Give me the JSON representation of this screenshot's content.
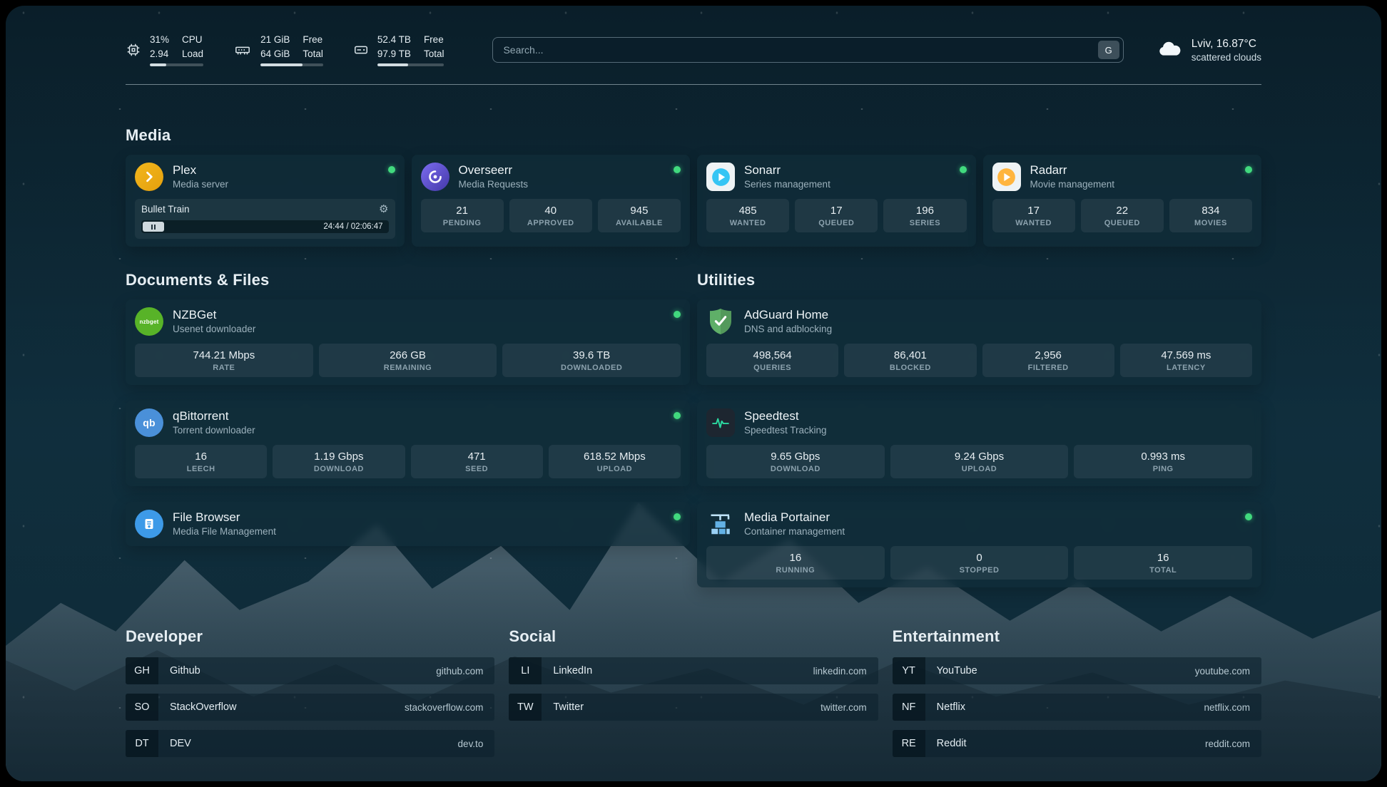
{
  "theme": {
    "status_online": "#41d97e",
    "card_bg": "#102c39",
    "accent_plex": "#e5a00d",
    "accent_sonarr": "#35c5f4",
    "accent_radarr": "#ffb53e",
    "accent_adguard": "#5faf68",
    "accent_speedtest": "#2bd9a0",
    "accent_filebrowser": "#3d9ae8",
    "accent_qbittorrent": "#4a90d9",
    "accent_nzbget": "#58b328",
    "accent_overseerr": "#6254c9"
  },
  "topbar": {
    "metrics": [
      {
        "icon": "cpu-icon",
        "values": [
          "31%",
          "2.94"
        ],
        "labels": [
          "CPU",
          "Load"
        ],
        "bar_pct": 31
      },
      {
        "icon": "memory-icon",
        "values": [
          "21 GiB",
          "64 GiB"
        ],
        "labels": [
          "Free",
          "Total"
        ],
        "bar_pct": 67
      },
      {
        "icon": "disk-icon",
        "values": [
          "52.4 TB",
          "97.9 TB"
        ],
        "labels": [
          "Free",
          "Total"
        ],
        "bar_pct": 46
      }
    ],
    "search": {
      "placeholder": "Search...",
      "key_hint": "G"
    },
    "weather": {
      "icon": "cloud-icon",
      "location": "Lviv, 16.87°C",
      "condition": "scattered clouds"
    }
  },
  "sections": {
    "media": {
      "title": "Media",
      "cards": [
        {
          "id": "plex",
          "name": "Plex",
          "description": "Media server",
          "online": true,
          "icon": {
            "name": "plex-icon",
            "style": "plex",
            "bg": "#e5a00d"
          },
          "media": {
            "title": "Bullet Train",
            "time": "24:44 / 02:06:47",
            "progress_pct": 19
          }
        },
        {
          "id": "overseerr",
          "name": "Overseerr",
          "description": "Media Requests",
          "online": true,
          "icon": {
            "name": "overseerr-icon",
            "style": "overseerr",
            "bg": "#7c6cf0",
            "bg2": "#4338a8"
          },
          "stats": [
            {
              "value": "21",
              "label": "PENDING"
            },
            {
              "value": "40",
              "label": "APPROVED"
            },
            {
              "value": "945",
              "label": "AVAILABLE"
            }
          ]
        },
        {
          "id": "sonarr",
          "name": "Sonarr",
          "description": "Series management",
          "online": true,
          "icon": {
            "name": "sonarr-icon",
            "style": "tile-play",
            "accent": "#35c5f4"
          },
          "stats": [
            {
              "value": "485",
              "label": "WANTED"
            },
            {
              "value": "17",
              "label": "QUEUED"
            },
            {
              "value": "196",
              "label": "SERIES"
            }
          ]
        },
        {
          "id": "radarr",
          "name": "Radarr",
          "description": "Movie management",
          "online": true,
          "icon": {
            "name": "radarr-icon",
            "style": "tile-play",
            "accent": "#ffb53e"
          },
          "stats": [
            {
              "value": "17",
              "label": "WANTED"
            },
            {
              "value": "22",
              "label": "QUEUED"
            },
            {
              "value": "834",
              "label": "MOVIES"
            }
          ]
        }
      ]
    },
    "documents": {
      "title": "Documents & Files",
      "cards": [
        {
          "id": "nzbget",
          "name": "NZBGet",
          "description": "Usenet downloader",
          "online": true,
          "icon": {
            "name": "nzbget-icon",
            "style": "circle-text",
            "bg": "#58b328",
            "text": "nzbget",
            "font": 8
          },
          "stats": [
            {
              "value": "744.21 Mbps",
              "label": "RATE"
            },
            {
              "value": "266 GB",
              "label": "REMAINING"
            },
            {
              "value": "39.6 TB",
              "label": "DOWNLOADED"
            }
          ]
        },
        {
          "id": "qbittorrent",
          "name": "qBittorrent",
          "description": "Torrent downloader",
          "online": true,
          "icon": {
            "name": "qbittorrent-icon",
            "style": "circle-text",
            "bg": "#4a90d9",
            "text": "qb",
            "font": 14
          },
          "stats": [
            {
              "value": "16",
              "label": "LEECH"
            },
            {
              "value": "1.19 Gbps",
              "label": "DOWNLOAD"
            },
            {
              "value": "471",
              "label": "SEED"
            },
            {
              "value": "618.52 Mbps",
              "label": "UPLOAD"
            }
          ]
        },
        {
          "id": "filebrowser",
          "name": "File Browser",
          "description": "Media File Management",
          "online": true,
          "icon": {
            "name": "filebrowser-icon",
            "style": "files",
            "bg": "#3d9ae8"
          },
          "stats": []
        }
      ]
    },
    "utilities": {
      "title": "Utilities",
      "cards": [
        {
          "id": "adguard",
          "name": "AdGuard Home",
          "description": "DNS and adblocking",
          "online": false,
          "icon": {
            "name": "adguard-shield-icon",
            "style": "shield",
            "bg": "#5faf68"
          },
          "stats": [
            {
              "value": "498,564",
              "label": "QUERIES"
            },
            {
              "value": "86,401",
              "label": "BLOCKED"
            },
            {
              "value": "2,956",
              "label": "FILTERED"
            },
            {
              "value": "47.569 ms",
              "label": "LATENCY"
            }
          ]
        },
        {
          "id": "speedtest",
          "name": "Speedtest",
          "description": "Speedtest Tracking",
          "online": false,
          "icon": {
            "name": "speedtest-waveform-icon",
            "style": "waveform",
            "accent": "#2bd9a0"
          },
          "stats": [
            {
              "value": "9.65 Gbps",
              "label": "DOWNLOAD"
            },
            {
              "value": "9.24 Gbps",
              "label": "UPLOAD"
            },
            {
              "value": "0.993 ms",
              "label": "PING"
            }
          ]
        },
        {
          "id": "portainer",
          "name": "Media Portainer",
          "description": "Container management",
          "online": true,
          "icon": {
            "name": "portainer-crane-icon",
            "style": "crane"
          },
          "stats": [
            {
              "value": "16",
              "label": "RUNNING"
            },
            {
              "value": "0",
              "label": "STOPPED"
            },
            {
              "value": "16",
              "label": "TOTAL"
            }
          ]
        }
      ]
    },
    "bookmarks": [
      {
        "title": "Developer",
        "items": [
          {
            "abbr": "GH",
            "name": "Github",
            "url": "github.com"
          },
          {
            "abbr": "SO",
            "name": "StackOverflow",
            "url": "stackoverflow.com"
          },
          {
            "abbr": "DT",
            "name": "DEV",
            "url": "dev.to"
          }
        ]
      },
      {
        "title": "Social",
        "items": [
          {
            "abbr": "LI",
            "name": "LinkedIn",
            "url": "linkedin.com"
          },
          {
            "abbr": "TW",
            "name": "Twitter",
            "url": "twitter.com"
          }
        ]
      },
      {
        "title": "Entertainment",
        "items": [
          {
            "abbr": "YT",
            "name": "YouTube",
            "url": "youtube.com"
          },
          {
            "abbr": "NF",
            "name": "Netflix",
            "url": "netflix.com"
          },
          {
            "abbr": "RE",
            "name": "Reddit",
            "url": "reddit.com"
          }
        ]
      }
    ]
  }
}
